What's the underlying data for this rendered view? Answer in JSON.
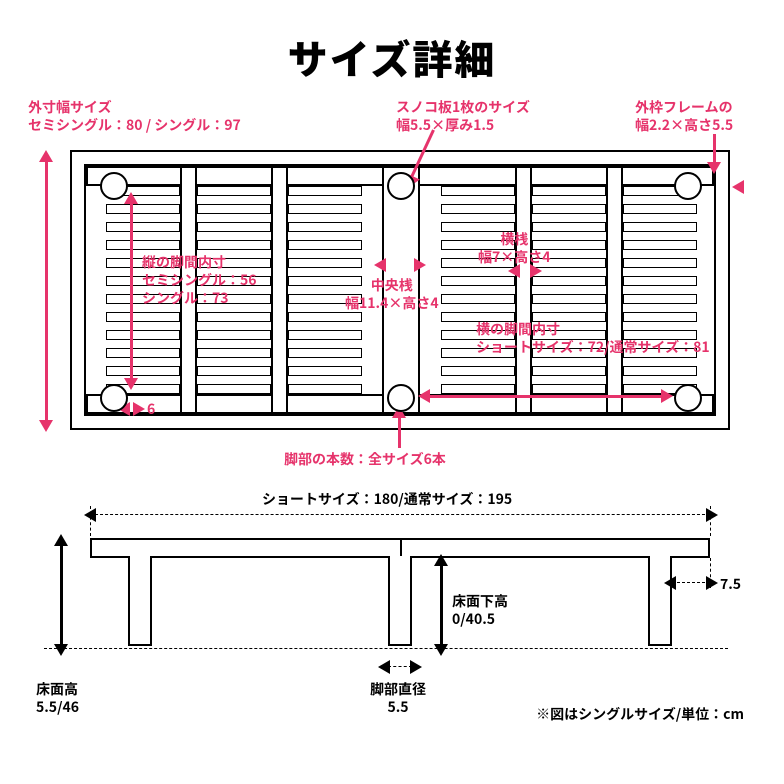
{
  "title": "サイズ詳細",
  "colors": {
    "accent": "#e6336b",
    "line": "#000000",
    "bg": "#ffffff"
  },
  "labels": {
    "outer_width": "外寸幅サイズ\nセミシングル：80 / シングル：97",
    "slat_size": "スノコ板1枚のサイズ\n幅5.5×厚み1.5",
    "outer_frame": "外枠フレームの\n幅2.2×高さ5.5",
    "leg_inner_v": "縦の脚間内寸\nセミシングル：56\nシングル：73",
    "center_bar": "中央桟\n幅11.4×高さ4",
    "cross_bar": "横桟\n幅7×高さ4",
    "leg_inner_h": "横の脚間内寸\nショートサイズ：72/通常サイズ：81",
    "leg_gap6": "6",
    "leg_count": "脚部の本数：全サイズ6本",
    "length": "ショートサイズ：180/通常サイズ：195",
    "underfloor": "床面下高\n0/40.5",
    "side_overhang": "7.5",
    "floor_height": "床面高\n5.5/46",
    "leg_dia": "脚部直径\n5.5",
    "footnote": "※図はシングルサイズ/単位：cm"
  },
  "structure": {
    "type": "infographic",
    "top_view": {
      "slat_columns": 6,
      "slats_per_column": 12,
      "cross_bars": 2,
      "center_bar": 1,
      "legs": 6
    },
    "side_view": {
      "legs_shown": 3
    }
  }
}
